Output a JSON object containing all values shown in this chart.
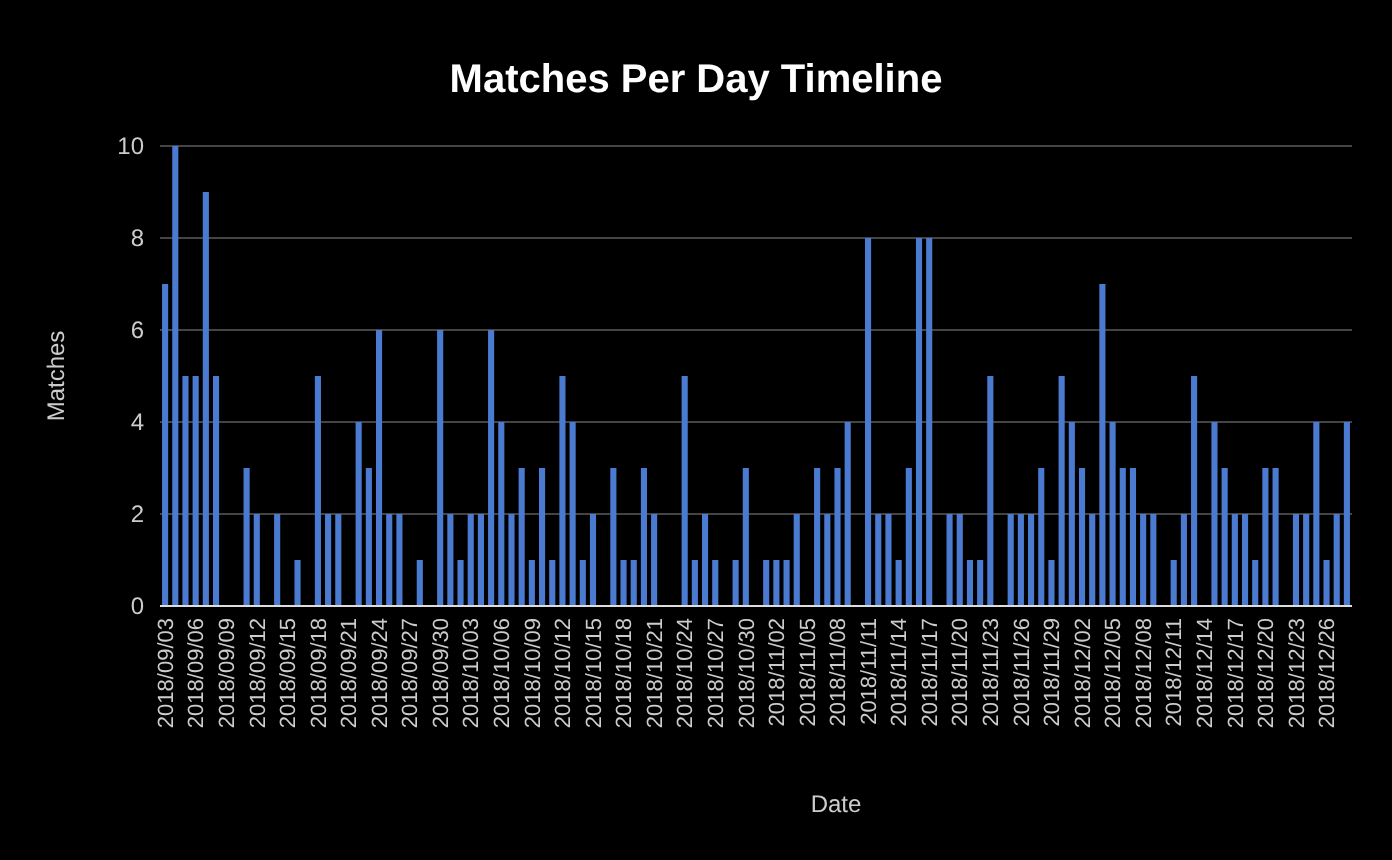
{
  "chart_data": {
    "type": "bar",
    "title": "Matches Per Day Timeline",
    "xlabel": "Date",
    "ylabel": "Matches",
    "categories": [
      "2018/09/03",
      null,
      null,
      "2018/09/06",
      null,
      null,
      "2018/09/09",
      null,
      null,
      "2018/09/12",
      null,
      null,
      "2018/09/15",
      null,
      null,
      "2018/09/18",
      null,
      null,
      "2018/09/21",
      null,
      null,
      "2018/09/24",
      null,
      null,
      "2018/09/27",
      null,
      null,
      "2018/09/30",
      null,
      null,
      "2018/10/03",
      null,
      null,
      "2018/10/06",
      null,
      null,
      "2018/10/09",
      null,
      null,
      "2018/10/12",
      null,
      null,
      "2018/10/15",
      null,
      null,
      "2018/10/18",
      null,
      null,
      "2018/10/21",
      null,
      null,
      "2018/10/24",
      null,
      null,
      "2018/10/27",
      null,
      null,
      "2018/10/30",
      null,
      null,
      "2018/11/02",
      null,
      null,
      "2018/11/05",
      null,
      null,
      "2018/11/08",
      null,
      null,
      "2018/11/11",
      null,
      null,
      "2018/11/14",
      null,
      null,
      "2018/11/17",
      null,
      null,
      "2018/11/20",
      null,
      null,
      "2018/11/23",
      null,
      null,
      "2018/11/26",
      null,
      null,
      "2018/11/29",
      null,
      null,
      "2018/12/02",
      null,
      null,
      "2018/12/05",
      null,
      null,
      "2018/12/08",
      null,
      null,
      "2018/12/11",
      null,
      null,
      "2018/12/14",
      null,
      null,
      "2018/12/17",
      null,
      null,
      "2018/12/20",
      null,
      null,
      "2018/12/23",
      null,
      null,
      "2018/12/26",
      null,
      null
    ],
    "values": [
      7,
      10,
      5,
      5,
      9,
      5,
      0,
      0,
      3,
      2,
      0,
      2,
      0,
      1,
      0,
      5,
      2,
      2,
      0,
      4,
      3,
      6,
      2,
      2,
      0,
      1,
      0,
      6,
      2,
      1,
      2,
      2,
      6,
      4,
      2,
      3,
      1,
      3,
      1,
      5,
      4,
      1,
      2,
      0,
      3,
      1,
      1,
      3,
      2,
      0,
      0,
      5,
      1,
      2,
      1,
      0,
      1,
      3,
      0,
      1,
      1,
      1,
      2,
      0,
      3,
      2,
      3,
      4,
      0,
      8,
      2,
      2,
      1,
      3,
      8,
      8,
      0,
      2,
      2,
      1,
      1,
      5,
      0,
      2,
      2,
      2,
      3,
      1,
      5,
      4,
      3,
      2,
      7,
      4,
      3,
      3,
      2,
      2,
      0,
      1,
      2,
      5,
      0,
      4,
      3,
      2,
      2,
      1,
      3,
      3,
      0,
      2,
      2,
      4,
      1,
      2,
      4
    ],
    "color": "#4a7bd0",
    "ylim": [
      0,
      10
    ],
    "yticks": [
      0,
      2,
      4,
      6,
      8,
      10
    ],
    "grid": "y"
  }
}
